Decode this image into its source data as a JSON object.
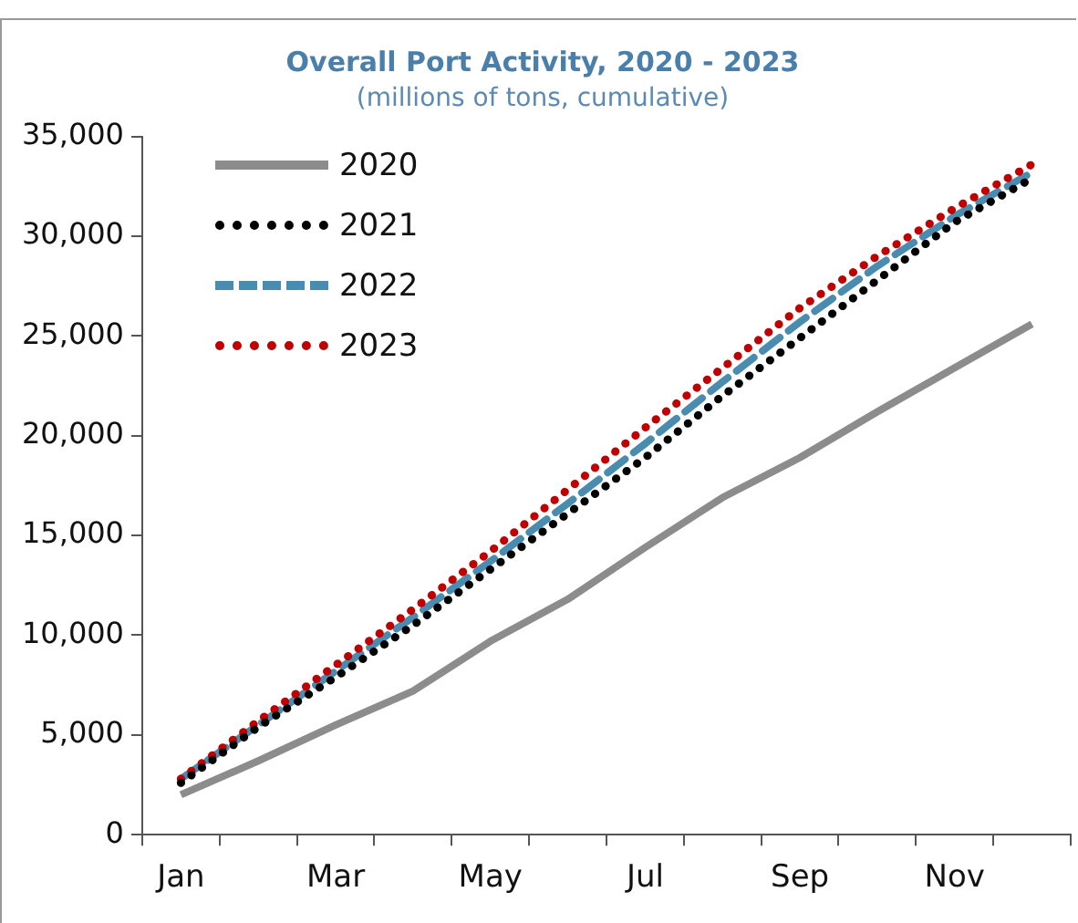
{
  "chart_data": {
    "type": "line",
    "title": "Overall Port Activity, 2020 - 2023",
    "subtitle": "(millions of tons, cumulative)",
    "categories": [
      "Jan",
      null,
      "Mar",
      null,
      "May",
      null,
      "Jul",
      null,
      "Sep",
      null,
      "Nov",
      null
    ],
    "series": [
      {
        "name": "2020",
        "color": "#8c8c8c",
        "line_style": "solid",
        "values": [
          2000,
          3700,
          5500,
          7200,
          9700,
          11800,
          14400,
          16900,
          18900,
          21200,
          23400,
          25600
        ]
      },
      {
        "name": "2021",
        "color": "#000000",
        "line_style": "dotted",
        "values": [
          2600,
          5400,
          7900,
          10500,
          13300,
          16100,
          18900,
          22000,
          24900,
          27800,
          30700,
          32900
        ]
      },
      {
        "name": "2022",
        "color": "#4a8bb0",
        "line_style": "dashed",
        "values": [
          2800,
          5500,
          8200,
          10900,
          13700,
          16600,
          19600,
          22700,
          25700,
          28500,
          31000,
          33200
        ]
      },
      {
        "name": "2023",
        "color": "#c00000",
        "line_style": "dotted",
        "values": [
          2800,
          5700,
          8500,
          11300,
          14200,
          17300,
          20400,
          23400,
          26400,
          29000,
          31400,
          33600
        ]
      }
    ],
    "ylim": [
      0,
      35000
    ],
    "yticks": [
      0,
      {
        "value": 5000,
        "label": "5,000"
      },
      {
        "value": 10000,
        "label": "10,000"
      },
      {
        "value": 15000,
        "label": "15,000"
      },
      {
        "value": 20000,
        "label": "20,000"
      },
      {
        "value": 25000,
        "label": "25,000"
      },
      {
        "value": 30000,
        "label": "30,000"
      },
      {
        "value": 35000,
        "label": "35,000"
      }
    ],
    "grid": false,
    "legend": "top left",
    "marker": "none"
  }
}
